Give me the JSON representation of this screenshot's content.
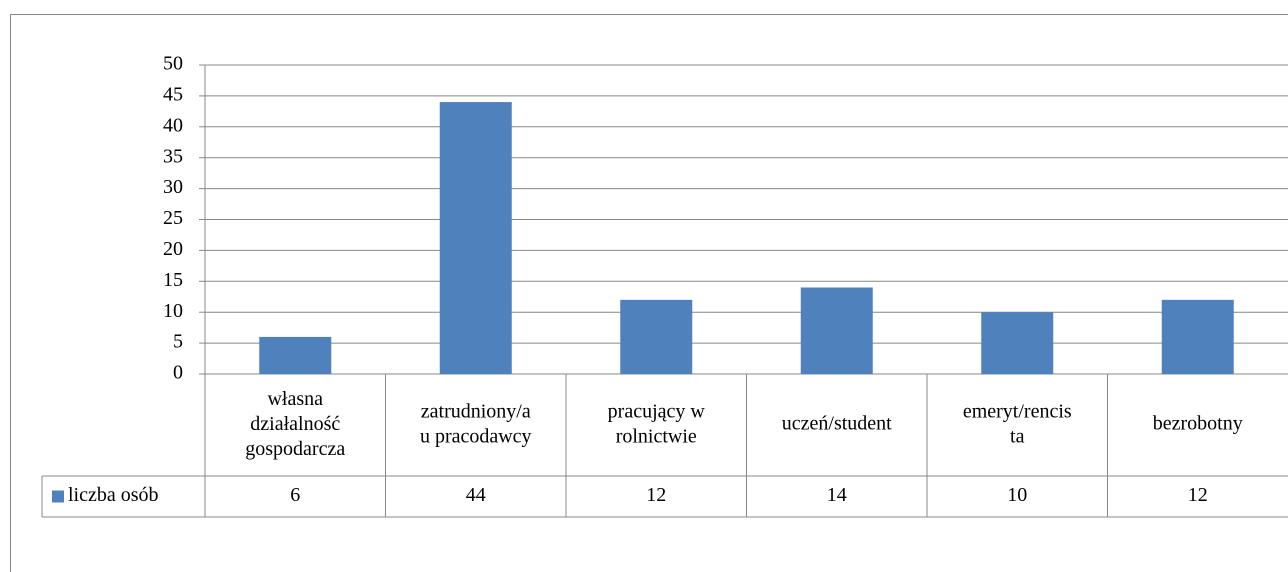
{
  "chart_data": {
    "type": "bar",
    "categories": [
      "własna\ndziałalność\ngospodarcza",
      "zatrudniony/a\nu pracodawcy",
      "pracujący w\nrolnictwie",
      "uczeń/student",
      "emeryt/rencis\nta",
      "bezrobotny"
    ],
    "series": [
      {
        "name": "liczba osób",
        "color": "#4f81bd",
        "values": [
          6,
          44,
          12,
          14,
          10,
          12
        ]
      }
    ],
    "ylim": [
      0,
      50
    ],
    "yticks": [
      0,
      5,
      10,
      15,
      20,
      25,
      30,
      35,
      40,
      45,
      50
    ],
    "grid": true,
    "data_table": true
  }
}
